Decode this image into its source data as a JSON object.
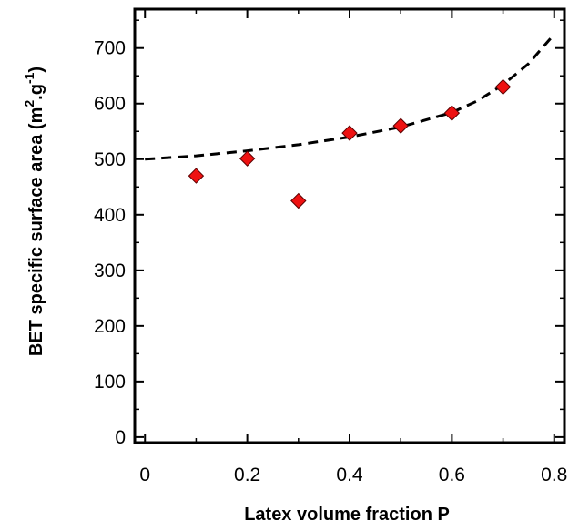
{
  "chart_data": {
    "type": "scatter",
    "xlabel": "Latex volume fraction P",
    "ylabel": {
      "main": "BET specific surface area (m",
      "sup_m": "2",
      "middle": ".g",
      "sup_g": "-1",
      "close": ")"
    },
    "xlim": [
      -0.02,
      0.82
    ],
    "ylim": [
      -10,
      770
    ],
    "x_ticks": [
      0,
      0.2,
      0.4,
      0.6,
      0.8
    ],
    "x_tick_labels": [
      "0",
      "0.2",
      "0.4",
      "0.6",
      "0.8"
    ],
    "y_ticks": [
      0,
      100,
      200,
      300,
      400,
      500,
      600,
      700
    ],
    "y_tick_labels": [
      "0",
      "100",
      "200",
      "300",
      "400",
      "500",
      "600",
      "700"
    ],
    "grid": false,
    "series": [
      {
        "marker": "diamond",
        "color": "#ee1111",
        "x": [
          0.1,
          0.2,
          0.3,
          0.4,
          0.5,
          0.6,
          0.7
        ],
        "y": [
          470,
          501,
          425,
          547,
          560,
          583,
          630
        ]
      }
    ],
    "fit_curve": {
      "style": "dashed",
      "color": "#000000",
      "x": [
        0,
        0.1,
        0.2,
        0.3,
        0.4,
        0.5,
        0.6,
        0.65,
        0.7,
        0.75,
        0.8
      ],
      "y": [
        500,
        506,
        515,
        526,
        540,
        558,
        584,
        605,
        634,
        672,
        725
      ]
    }
  }
}
